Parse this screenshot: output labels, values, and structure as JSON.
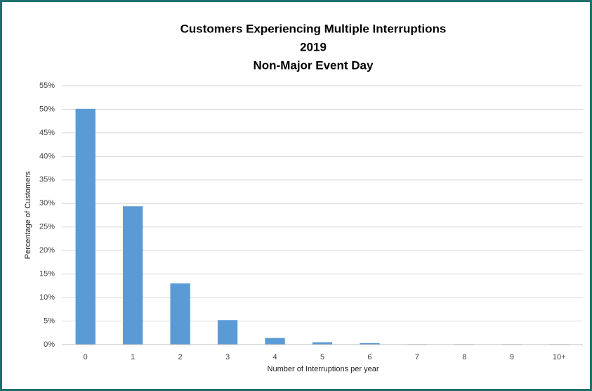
{
  "chart_data": {
    "type": "bar",
    "title": [
      "Customers Experiencing Multiple Interruptions",
      "2019",
      "Non-Major Event Day"
    ],
    "xlabel": "Number of Interruptions per year",
    "ylabel": "Percentage of Customers",
    "categories": [
      "0",
      "1",
      "2",
      "3",
      "4",
      "5",
      "6",
      "7",
      "8",
      "9",
      "10+"
    ],
    "values": [
      50.1,
      29.4,
      13.0,
      5.2,
      1.4,
      0.5,
      0.3,
      0.1,
      0.1,
      0.1,
      0.1
    ],
    "color": "#5b9bd5",
    "ylim": [
      0,
      55
    ],
    "yticks": [
      {
        "value": 0,
        "label": "0%"
      },
      {
        "value": 5,
        "label": "5%"
      },
      {
        "value": 10,
        "label": "10%"
      },
      {
        "value": 15,
        "label": "15%"
      },
      {
        "value": 20,
        "label": "20%"
      },
      {
        "value": 25,
        "label": "25%"
      },
      {
        "value": 30,
        "label": "30%"
      },
      {
        "value": 35,
        "label": "35%"
      },
      {
        "value": 40,
        "label": "40%"
      },
      {
        "value": 45,
        "label": "45%"
      },
      {
        "value": 50,
        "label": "50%"
      },
      {
        "value": 55,
        "label": "55%"
      }
    ],
    "grid": true
  }
}
